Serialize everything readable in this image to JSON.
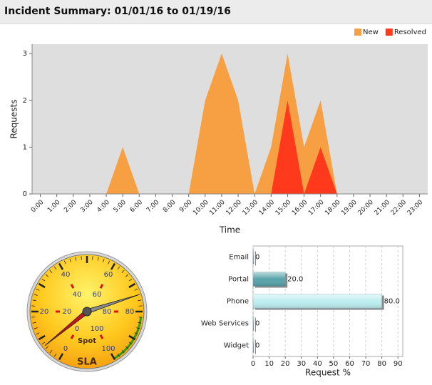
{
  "header": {
    "title": "Incident Summary: 01/01/16 to 01/19/16"
  },
  "chart_data": [
    {
      "type": "area",
      "xlabel": "Time",
      "ylabel": "Requests",
      "categories": [
        "0:00",
        "1:00",
        "2:00",
        "3:00",
        "4:00",
        "5:00",
        "6:00",
        "7:00",
        "8:00",
        "9:00",
        "10:00",
        "11:00",
        "12:00",
        "13:00",
        "14:00",
        "15:00",
        "16:00",
        "17:00",
        "18:00",
        "19:00",
        "20:00",
        "21:00",
        "22:00",
        "23:00"
      ],
      "series": [
        {
          "name": "New",
          "color": "#f7a043",
          "values": [
            0,
            0,
            0,
            0,
            0,
            1,
            0,
            0,
            0,
            0,
            2,
            3,
            2,
            0,
            1,
            3,
            1,
            2,
            0,
            0,
            0,
            0,
            0,
            0
          ]
        },
        {
          "name": "Resolved",
          "color": "#ff3a1c",
          "values": [
            0,
            0,
            0,
            0,
            0,
            0,
            0,
            0,
            0,
            0,
            0,
            0,
            0,
            0,
            0,
            2,
            0,
            1,
            0,
            0,
            0,
            0,
            0,
            0
          ]
        }
      ],
      "ylim": [
        0,
        3.2
      ],
      "yticks": [
        0,
        1,
        2,
        3
      ],
      "legend": "top-right"
    },
    {
      "type": "gauge",
      "lim": [
        0,
        100
      ],
      "outer_ticks": [
        0,
        20,
        40,
        60,
        80,
        100
      ],
      "inner_ticks": [
        0,
        20,
        40,
        60,
        80,
        100
      ],
      "series": [
        {
          "name": "Spot",
          "color": "#c81414",
          "value": 7
        },
        {
          "name": "SLA",
          "color": "#8a8a8a",
          "value": 74
        }
      ],
      "band": {
        "from": 82,
        "to": 100,
        "color": "#2f9a1c"
      }
    },
    {
      "type": "hbar",
      "xlabel": "Request %",
      "categories": [
        "Email",
        "Portal",
        "Phone",
        "Web Services",
        "Widget"
      ],
      "values": [
        0,
        20,
        80,
        0,
        0
      ],
      "value_labels": [
        "0",
        "20.0",
        "80.0",
        "0",
        "0"
      ],
      "colors": [
        "#7a9ea1",
        "#57a3aa",
        "#bdeef0",
        "#7a9ea1",
        "#7a9ea1"
      ],
      "xlim": [
        0,
        93
      ],
      "xticks": [
        0,
        10,
        20,
        30,
        40,
        50,
        60,
        70,
        80,
        90
      ],
      "grid": true
    }
  ]
}
